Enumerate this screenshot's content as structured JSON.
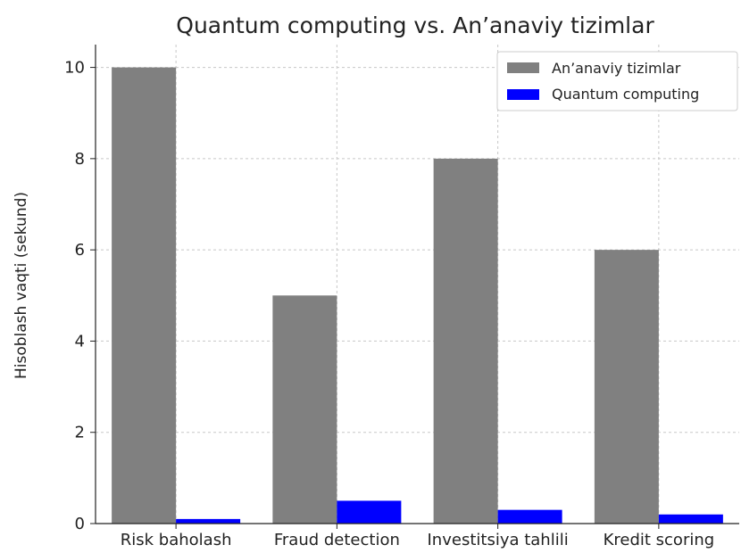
{
  "chart_data": {
    "type": "bar",
    "title": "Quantum computing vs. An’anaviy tizimlar",
    "xlabel": "",
    "ylabel": "Hisoblash vaqti (sekund)",
    "categories": [
      "Risk baholash",
      "Fraud detection",
      "Investitsiya tahlili",
      "Kredit scoring"
    ],
    "series": [
      {
        "name": "An’anaviy tizimlar",
        "values": [
          10,
          5,
          8,
          6
        ],
        "color": "#808080"
      },
      {
        "name": "Quantum computing",
        "values": [
          0.1,
          0.5,
          0.3,
          0.2
        ],
        "color": "#0000ff"
      }
    ],
    "ylim": [
      0,
      10.5
    ],
    "yticks": [
      "0",
      "2",
      "4",
      "6",
      "8",
      "10"
    ],
    "grid": true,
    "legend_position": "top-right"
  }
}
